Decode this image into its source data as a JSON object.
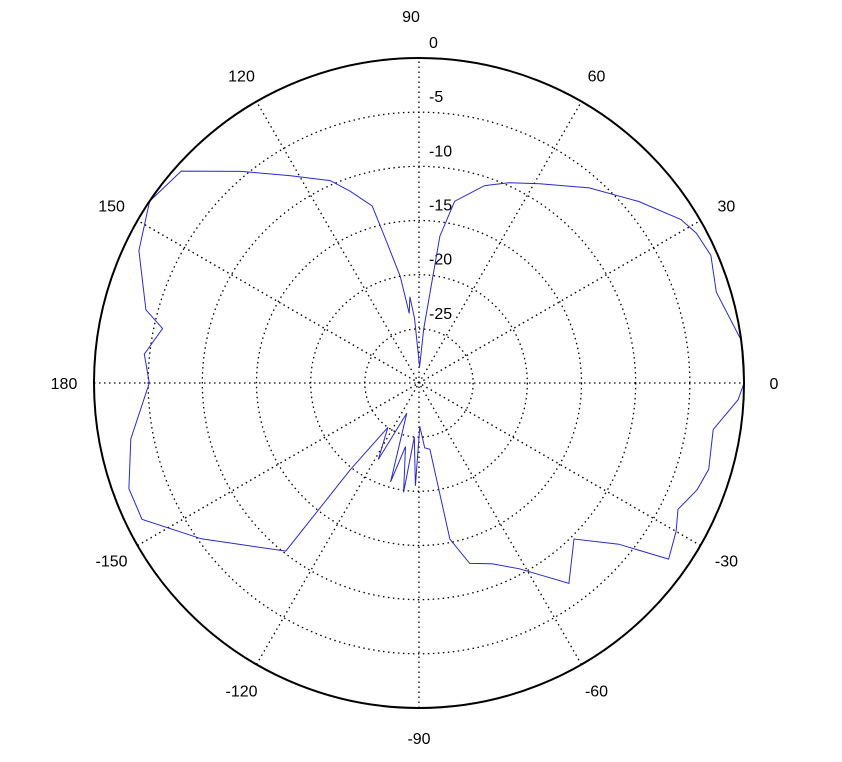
{
  "chart_data": {
    "type": "line",
    "projection": "polar",
    "title": "",
    "angle_unit": "degrees",
    "angle_tick_labels": [
      "0",
      "30",
      "60",
      "90",
      "120",
      "150",
      "180",
      "-150",
      "-120",
      "-90",
      "-60",
      "-30"
    ],
    "angle_ticks": [
      0,
      30,
      60,
      90,
      120,
      150,
      180,
      -150,
      -120,
      -90,
      -60,
      -30
    ],
    "radial_tick_labels": [
      "0",
      "-5",
      "-10",
      "-15",
      "-20",
      "-25"
    ],
    "radial_ticks": [
      0,
      -5,
      -10,
      -15,
      -20,
      -25
    ],
    "rlim": [
      -30,
      0
    ],
    "grid": true,
    "grid_style": "dotted",
    "series": [
      {
        "color": "#2a2acc",
        "points": [
          [
            0,
            0
          ],
          [
            7.6,
            0
          ],
          [
            17,
            -1.3
          ],
          [
            23.6,
            -0.6
          ],
          [
            28.4,
            -0.9
          ],
          [
            32,
            -1.5
          ],
          [
            39.6,
            -3.7
          ],
          [
            48.9,
            -6.1
          ],
          [
            58.8,
            -8.5
          ],
          [
            65.6,
            -9.7
          ],
          [
            71.6,
            -10.8
          ],
          [
            78.9,
            -12.9
          ],
          [
            81.9,
            -16.3
          ],
          [
            83,
            -21.4
          ],
          [
            85,
            -25
          ],
          [
            88,
            -28.5
          ],
          [
            92,
            -27
          ],
          [
            94,
            -24
          ],
          [
            96,
            -22
          ],
          [
            98,
            -23.5
          ],
          [
            100,
            -20
          ],
          [
            103,
            -16.5
          ],
          [
            104.8,
            -13.1
          ],
          [
            109.7,
            -11.2
          ],
          [
            113.7,
            -9.6
          ],
          [
            121.8,
            -7.5
          ],
          [
            130,
            -4.5
          ],
          [
            138.3,
            -0.6
          ],
          [
            146,
            0
          ],
          [
            154.7,
            -1.4
          ],
          [
            165,
            -3.9
          ],
          [
            168,
            -5.8
          ],
          [
            174,
            -4.5
          ],
          [
            180,
            -5.1
          ],
          [
            -169,
            -2.9
          ],
          [
            -160,
            -1.5
          ],
          [
            -153.8,
            -1.5
          ],
          [
            -144.4,
            -5.3
          ],
          [
            -128.4,
            -10.2
          ],
          [
            -128.4,
            -19.8
          ],
          [
            -125,
            -25
          ],
          [
            -118,
            -22
          ],
          [
            -112,
            -27
          ],
          [
            -106,
            -20.5
          ],
          [
            -102,
            -24
          ],
          [
            -98,
            -19.8
          ],
          [
            -95,
            -25
          ],
          [
            -92,
            -20.5
          ],
          [
            -89,
            -26
          ],
          [
            -85,
            -24
          ],
          [
            -80.7,
            -23.8
          ],
          [
            -78.8,
            -15.3
          ],
          [
            -74.3,
            -12.7
          ],
          [
            -68,
            -12
          ],
          [
            -61.6,
            -10.5
          ],
          [
            -53.2,
            -6.9
          ],
          [
            -45.2,
            -9.7
          ],
          [
            -38.9,
            -6.3
          ],
          [
            -35.2,
            -1.8
          ],
          [
            -30,
            -2.6
          ],
          [
            -26,
            -3.4
          ],
          [
            -21,
            -2.5
          ],
          [
            -16.6,
            -2.1
          ],
          [
            -9,
            -2.5
          ],
          [
            -3,
            -0.5
          ],
          [
            0,
            0
          ]
        ]
      }
    ]
  }
}
